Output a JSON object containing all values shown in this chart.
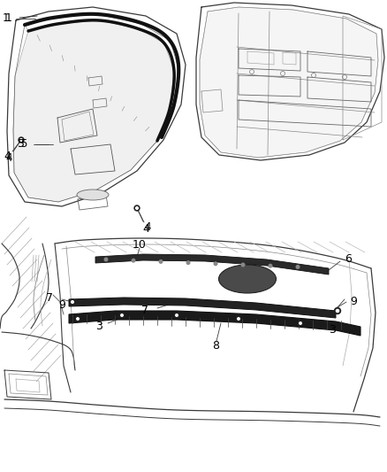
{
  "bg_color": "#ffffff",
  "fig_width": 4.38,
  "fig_height": 5.33,
  "dpi": 100,
  "line_color": "#3a3a3a",
  "label_font_size": 8.5,
  "label_color": "#000000",
  "bold_color": "#111111",
  "light_color": "#888888"
}
